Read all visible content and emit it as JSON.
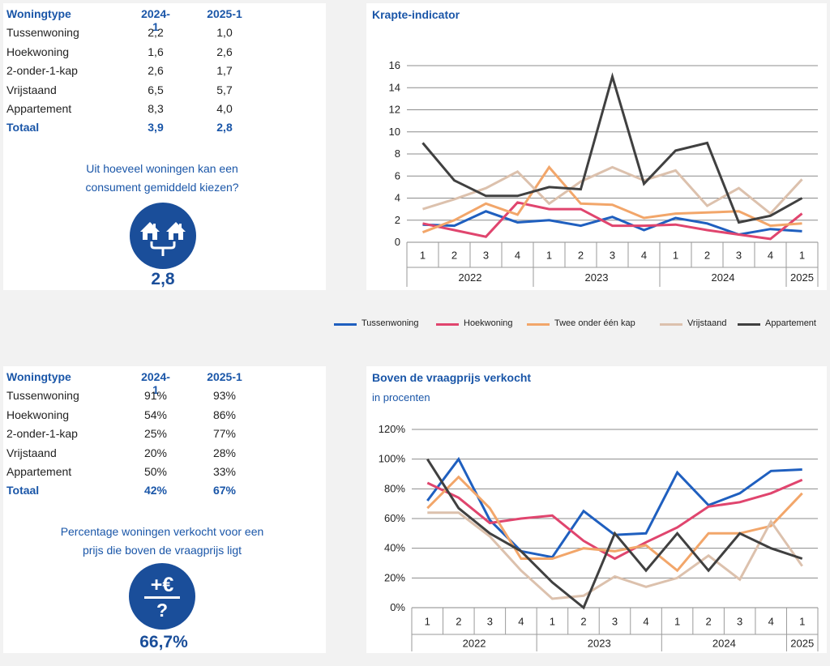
{
  "top": {
    "table": {
      "headers": [
        "Woningtype",
        "2024-1",
        "2025-1"
      ],
      "rows": [
        [
          "Tussenwoning",
          "2,2",
          "1,0"
        ],
        [
          "Hoekwoning",
          "1,6",
          "2,6"
        ],
        [
          "2-onder-1-kap",
          "2,6",
          "1,7"
        ],
        [
          "Vrijstaand",
          "6,5",
          "5,7"
        ],
        [
          "Appartement",
          "8,3",
          "4,0"
        ]
      ],
      "total": [
        "Totaal",
        "3,9",
        "2,8"
      ]
    },
    "question": [
      "Uit hoeveel woningen kan een",
      "consument gemiddeld kiezen?"
    ],
    "icon": "houses-choice-icon",
    "value": "2,8"
  },
  "bottom": {
    "table": {
      "headers": [
        "Woningtype",
        "2024-1",
        "2025-1"
      ],
      "rows": [
        [
          "Tussenwoning",
          "91%",
          "93%"
        ],
        [
          "Hoekwoning",
          "54%",
          "86%"
        ],
        [
          "2-onder-1-kap",
          "25%",
          "77%"
        ],
        [
          "Vrijstaand",
          "20%",
          "28%"
        ],
        [
          "Appartement",
          "50%",
          "33%"
        ]
      ],
      "total": [
        "Totaal",
        "42%",
        "67%"
      ]
    },
    "question": [
      "Percentage woningen verkocht voor een",
      "prijs die boven de vraagprijs ligt"
    ],
    "icon": "plus-euro-question-icon",
    "value": "66,7%"
  },
  "colors": {
    "accent": "#1a56a8",
    "circle": "#1a4e9a"
  },
  "legend": [
    {
      "name": "Tussenwoning",
      "color": "#1f5fbf"
    },
    {
      "name": "Hoekwoning",
      "color": "#e0456e"
    },
    {
      "name": "Twee onder één kap",
      "color": "#f2a66a"
    },
    {
      "name": "Vrijstaand",
      "color": "#dcc1ad"
    },
    {
      "name": "Appartement",
      "color": "#404040"
    }
  ],
  "chart_data": [
    {
      "type": "line",
      "title": "Krapte-indicator",
      "subtitle": "",
      "x": [
        "1",
        "2",
        "3",
        "4",
        "1",
        "2",
        "3",
        "4",
        "1",
        "2",
        "3",
        "4",
        "1"
      ],
      "x_groups": [
        {
          "label": "2022",
          "count": 4
        },
        {
          "label": "2023",
          "count": 4
        },
        {
          "label": "2024",
          "count": 4
        },
        {
          "label": "2025",
          "count": 1
        }
      ],
      "ylim": [
        0,
        16
      ],
      "yticks": [
        0,
        2,
        4,
        6,
        8,
        10,
        12,
        14,
        16
      ],
      "ytick_labels": [
        "0",
        "2",
        "4",
        "6",
        "8",
        "10",
        "12",
        "14",
        "16"
      ],
      "grid": true,
      "legend": "bottom",
      "series": [
        {
          "name": "Tussenwoning",
          "color": "#1f5fbf",
          "values": [
            1.6,
            1.5,
            2.8,
            1.8,
            2.0,
            1.5,
            2.3,
            1.1,
            2.2,
            1.7,
            0.7,
            1.2,
            1.0
          ]
        },
        {
          "name": "Hoekwoning",
          "color": "#e0456e",
          "values": [
            1.7,
            1.1,
            0.5,
            3.6,
            3.0,
            3.0,
            1.5,
            1.5,
            1.6,
            1.1,
            0.7,
            0.3,
            2.6
          ]
        },
        {
          "name": "Twee onder één kap",
          "color": "#f2a66a",
          "values": [
            0.9,
            2.0,
            3.5,
            2.5,
            6.8,
            3.5,
            3.4,
            2.2,
            2.6,
            2.7,
            2.8,
            1.5,
            1.7
          ]
        },
        {
          "name": "Vrijstaand",
          "color": "#dcc1ad",
          "values": [
            3.0,
            3.9,
            4.9,
            6.4,
            3.5,
            5.5,
            6.8,
            5.6,
            6.5,
            3.3,
            4.9,
            2.6,
            5.7
          ]
        },
        {
          "name": "Appartement",
          "color": "#404040",
          "values": [
            9.0,
            5.6,
            4.2,
            4.2,
            5.0,
            4.8,
            15.0,
            5.3,
            8.3,
            9.0,
            1.8,
            2.4,
            4.0
          ]
        }
      ]
    },
    {
      "type": "line",
      "title": "Boven de vraagprijs verkocht",
      "subtitle": "in procenten",
      "x": [
        "1",
        "2",
        "3",
        "4",
        "1",
        "2",
        "3",
        "4",
        "1",
        "2",
        "3",
        "4",
        "1"
      ],
      "x_groups": [
        {
          "label": "2022",
          "count": 4
        },
        {
          "label": "2023",
          "count": 4
        },
        {
          "label": "2024",
          "count": 4
        },
        {
          "label": "2025",
          "count": 1
        }
      ],
      "ylim": [
        0,
        120
      ],
      "yticks": [
        0,
        20,
        40,
        60,
        80,
        100,
        120
      ],
      "ytick_labels": [
        "0%",
        "20%",
        "40%",
        "60%",
        "80%",
        "100%",
        "120%"
      ],
      "grid": true,
      "series": [
        {
          "name": "Tussenwoning",
          "color": "#1f5fbf",
          "values": [
            72,
            100,
            59,
            38,
            34,
            65,
            49,
            50,
            91,
            69,
            77,
            92,
            93
          ]
        },
        {
          "name": "Hoekwoning",
          "color": "#e0456e",
          "values": [
            84,
            74,
            57,
            60,
            62,
            45,
            33,
            44,
            54,
            68,
            71,
            77,
            86
          ]
        },
        {
          "name": "Twee onder één kap",
          "color": "#f2a66a",
          "values": [
            67,
            88,
            67,
            33,
            33,
            40,
            38,
            42,
            25,
            50,
            50,
            55,
            77
          ]
        },
        {
          "name": "Vrijstaand",
          "color": "#dcc1ad",
          "values": [
            64,
            64,
            48,
            25,
            6,
            8,
            21,
            14,
            20,
            35,
            19,
            58,
            28
          ]
        },
        {
          "name": "Appartement",
          "color": "#404040",
          "values": [
            100,
            67,
            50,
            38,
            17,
            0,
            50,
            25,
            50,
            25,
            50,
            40,
            33
          ]
        }
      ]
    }
  ]
}
